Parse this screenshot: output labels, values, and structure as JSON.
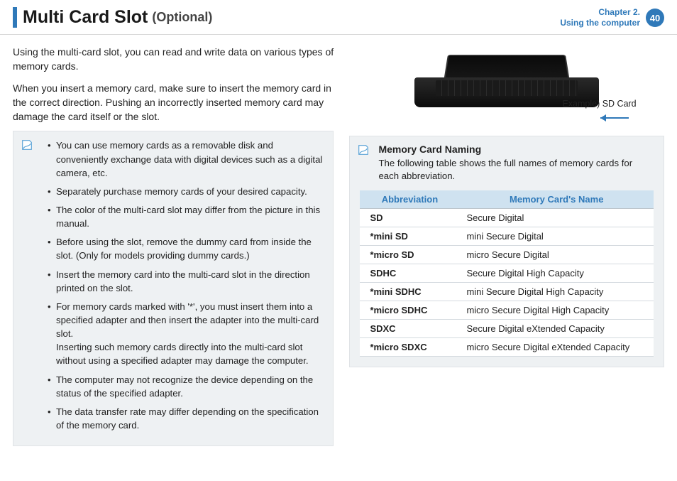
{
  "header": {
    "title": "Multi Card Slot",
    "subtitle": "(Optional)",
    "chapter_line1": "Chapter 2.",
    "chapter_line2": "Using the computer",
    "page_number": "40"
  },
  "intro": {
    "p1": "Using the multi-card slot, you can read and write data on various types of memory cards.",
    "p2": "When you insert a memory card, make sure to insert the memory card in the correct direction. Pushing an incorrectly inserted memory card may damage the card itself or the slot."
  },
  "notes": [
    "You can use memory cards as a removable disk and conveniently exchange data with digital devices such as a digital camera, etc.",
    "Separately purchase memory cards of your desired capacity.",
    "The color of the multi-card slot may differ from the picture in this manual.",
    "Before using the slot, remove the dummy card from inside the slot. (Only for models providing dummy cards.)",
    "Insert the memory card into the multi-card slot in the direction printed on the slot.",
    "For memory cards marked with '*', you must insert them into a specified adapter and then insert the adapter into the multi-card slot.\nInserting such memory cards directly into the multi-card slot without using a specified adapter may damage the computer.",
    "The computer may not recognize the device depending on the status of the specified adapter.",
    "The data transfer rate may differ depending on the specification of the memory card."
  ],
  "figure": {
    "caption": "Example) SD Card"
  },
  "naming_box": {
    "title": "Memory Card Naming",
    "sub": "The following table shows the full names of memory cards for each abbreviation.",
    "col1": "Abbreviation",
    "col2": "Memory Card's Name",
    "rows": [
      {
        "abbr": "SD",
        "name": "Secure Digital"
      },
      {
        "abbr": "*mini SD",
        "name": "mini Secure Digital"
      },
      {
        "abbr": "*micro SD",
        "name": "micro Secure Digital"
      },
      {
        "abbr": "SDHC",
        "name": "Secure Digital High Capacity"
      },
      {
        "abbr": "*mini SDHC",
        "name": "mini Secure Digital High Capacity"
      },
      {
        "abbr": "*micro SDHC",
        "name": "micro Secure Digital High Capacity"
      },
      {
        "abbr": "SDXC",
        "name": "Secure Digital eXtended Capacity"
      },
      {
        "abbr": "*micro SDXC",
        "name": "micro Secure Digital eXtended Capacity"
      }
    ]
  }
}
